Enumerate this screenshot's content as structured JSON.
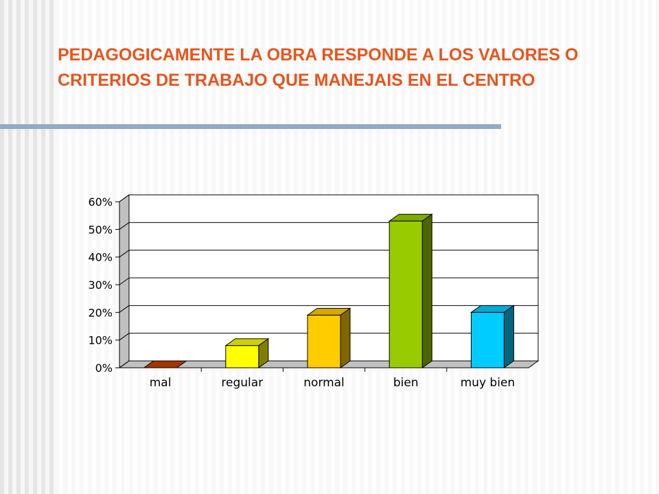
{
  "title": "PEDAGOGICAMENTE LA OBRA RESPONDE A LOS VALORES O CRITERIOS DE TRABAJO QUE MANEJAIS EN EL CENTRO",
  "chart_data": {
    "type": "bar",
    "title": "PEDAGOGICAMENTE LA OBRA RESPONDE A LOS VALORES O CRITERIOS DE TRABAJO QUE MANEJAIS EN EL CENTRO",
    "categories": [
      "mal",
      "regular",
      "normal",
      "bien",
      "muy bien"
    ],
    "values": [
      0,
      8,
      19,
      53,
      20
    ],
    "ylim": [
      0,
      60
    ],
    "yticks": [
      "0%",
      "10%",
      "20%",
      "30%",
      "40%",
      "50%",
      "60%"
    ],
    "grid": true,
    "legend": "none",
    "colors": {
      "front": [
        "#c04000",
        "#ffff00",
        "#ffcc00",
        "#99cc00",
        "#00ccff"
      ],
      "side": [
        "#803000",
        "#808000",
        "#806600",
        "#4d6600",
        "#006680"
      ],
      "top": [
        "#a03600",
        "#d0d000",
        "#d4a800",
        "#80aa00",
        "#00aad4"
      ]
    }
  }
}
